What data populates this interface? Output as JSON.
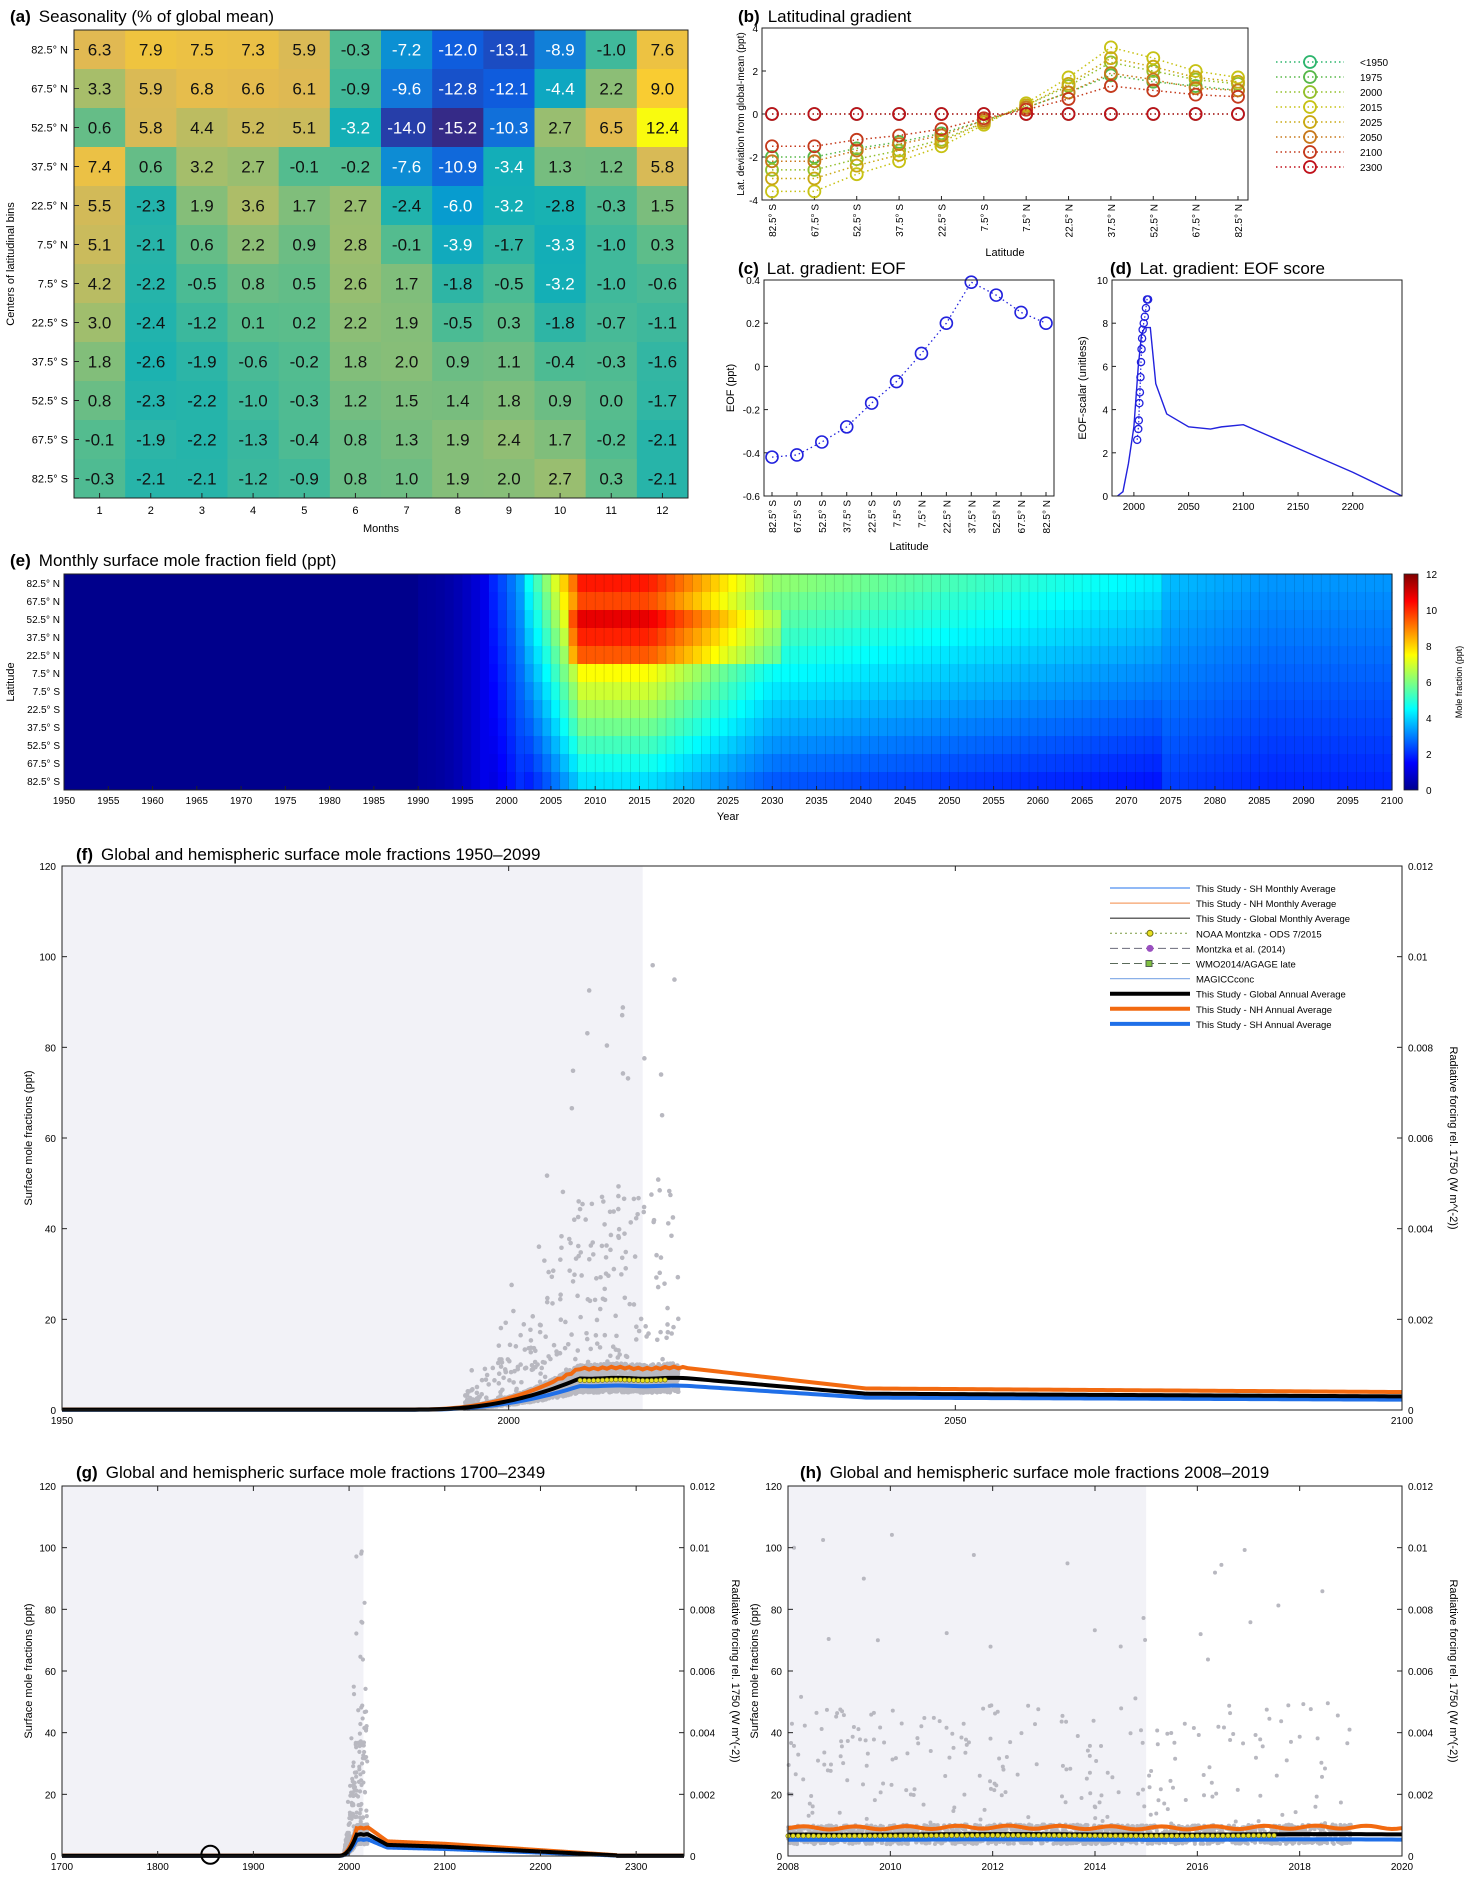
{
  "panels": {
    "a": {
      "letter": "(a)",
      "title": "Seasonality (% of global mean)"
    },
    "b": {
      "letter": "(b)",
      "title": "Latitudinal gradient"
    },
    "c": {
      "letter": "(c)",
      "title": "Lat. gradient: EOF"
    },
    "d": {
      "letter": "(d)",
      "title": "Lat. gradient: EOF score"
    },
    "e": {
      "letter": "(e)",
      "title": "Monthly surface mole fraction field (ppt)"
    },
    "f": {
      "letter": "(f)",
      "title": "Global and hemispheric surface mole fractions 1950–2099"
    },
    "g": {
      "letter": "(g)",
      "title": "Global and hemispheric surface mole fractions 1700–2349"
    },
    "h": {
      "letter": "(h)",
      "title": "Global and hemispheric surface mole fractions 2008–2019"
    }
  },
  "colors": {
    "nh": "#f26a10",
    "sh": "#1f6fe8",
    "global": "#000000",
    "sh_monthly": "#4f8ff0",
    "nh_monthly": "#f5a06a",
    "obs": "#b8b8c0",
    "shade": "#f2f2f7",
    "eof": "#2222dd"
  },
  "chart_data": [
    {
      "id": "a",
      "type": "heatmap",
      "title": "Seasonality (% of global mean)",
      "xlabel": "Months",
      "ylabel": "Centers of latitudinal bins",
      "x": [
        "1",
        "2",
        "3",
        "4",
        "5",
        "6",
        "7",
        "8",
        "9",
        "10",
        "11",
        "12"
      ],
      "y": [
        "82.5° N",
        "67.5° N",
        "52.5° N",
        "37.5° N",
        "22.5° N",
        "7.5° N",
        "7.5° S",
        "22.5° S",
        "37.5° S",
        "52.5° S",
        "67.5° S",
        "82.5° S"
      ],
      "z": [
        [
          "6.3",
          "7.9",
          "7.5",
          "7.3",
          "5.9",
          "-0.3",
          "-7.2",
          "-12.0",
          "-13.1",
          "-8.9",
          "-1.0",
          "7.6"
        ],
        [
          "3.3",
          "5.9",
          "6.8",
          "6.6",
          "6.1",
          "-0.9",
          "-9.6",
          "-12.8",
          "-12.1",
          "-4.4",
          "2.2",
          "9.0"
        ],
        [
          "0.6",
          "5.8",
          "4.4",
          "5.2",
          "5.1",
          "-3.2",
          "-14.0",
          "-15.2",
          "-10.3",
          "2.7",
          "6.5",
          "12.4"
        ],
        [
          "7.4",
          "0.6",
          "3.2",
          "2.7",
          "-0.1",
          "-0.2",
          "-7.6",
          "-10.9",
          "-3.4",
          "1.3",
          "1.2",
          "5.8"
        ],
        [
          "5.5",
          "-2.3",
          "1.9",
          "3.6",
          "1.7",
          "2.7",
          "-2.4",
          "-6.0",
          "-3.2",
          "-2.8",
          "-0.3",
          "1.5"
        ],
        [
          "5.1",
          "-2.1",
          "0.6",
          "2.2",
          "0.9",
          "2.8",
          "-0.1",
          "-3.9",
          "-1.7",
          "-3.3",
          "-1.0",
          "0.3"
        ],
        [
          "4.2",
          "-2.2",
          "-0.5",
          "0.8",
          "0.5",
          "2.6",
          "1.7",
          "-1.8",
          "-0.5",
          "-3.2",
          "-1.0",
          "-0.6"
        ],
        [
          "3.0",
          "-2.4",
          "-1.2",
          "0.1",
          "0.2",
          "2.2",
          "1.9",
          "-0.5",
          "0.3",
          "-1.8",
          "-0.7",
          "-1.1"
        ],
        [
          "1.8",
          "-2.6",
          "-1.9",
          "-0.6",
          "-0.2",
          "1.8",
          "2.0",
          "0.9",
          "1.1",
          "-0.4",
          "-0.3",
          "-1.6"
        ],
        [
          "0.8",
          "-2.3",
          "-2.2",
          "-1.0",
          "-0.3",
          "1.2",
          "1.5",
          "1.4",
          "1.8",
          "0.9",
          "0.0",
          "-1.7"
        ],
        [
          "-0.1",
          "-1.9",
          "-2.2",
          "-1.3",
          "-0.4",
          "0.8",
          "1.3",
          "1.9",
          "2.4",
          "1.7",
          "-0.2",
          "-2.1"
        ],
        [
          "-0.3",
          "-2.1",
          "-2.1",
          "-1.2",
          "-0.9",
          "0.8",
          "1.0",
          "1.9",
          "2.0",
          "2.7",
          "0.3",
          "-2.1"
        ]
      ]
    },
    {
      "id": "b",
      "type": "line",
      "title": "Latitudinal gradient",
      "xlabel": "Latitude",
      "ylabel": "Lat. deviation from global-mean (ppt)",
      "ylim": [
        -4,
        4
      ],
      "yticks": [
        "4",
        "2",
        "0",
        "-2",
        "-4"
      ],
      "categories": [
        "82.5° S",
        "67.5° S",
        "52.5° S",
        "37.5° S",
        "22.5° S",
        "7.5° S",
        "7.5° N",
        "22.5° N",
        "37.5° N",
        "52.5° N",
        "67.5° N",
        "82.5° N"
      ],
      "cat_lat": [
        -82.5,
        -67.5,
        -52.5,
        -37.5,
        -22.5,
        -7.5,
        7.5,
        22.5,
        37.5,
        52.5,
        67.5,
        82.5
      ],
      "series": [
        {
          "name": "<1950",
          "color": "#2db56d",
          "values": [
            0,
            0,
            0,
            0,
            0,
            0,
            0,
            0,
            0,
            0,
            0,
            0
          ]
        },
        {
          "name": "1975",
          "color": "#58b849",
          "values": [
            -2.0,
            -2.0,
            -1.6,
            -1.3,
            -0.9,
            -0.3,
            0.3,
            1.0,
            1.8,
            1.5,
            1.3,
            1.1
          ]
        },
        {
          "name": "2000",
          "color": "#93bf2a",
          "values": [
            -2.6,
            -2.6,
            -2.1,
            -1.7,
            -1.2,
            -0.4,
            0.4,
            1.3,
            2.4,
            2.0,
            1.6,
            1.4
          ]
        },
        {
          "name": "2015",
          "color": "#c7c214",
          "values": [
            -3.6,
            -3.6,
            -2.8,
            -2.2,
            -1.5,
            -0.5,
            0.5,
            1.7,
            3.1,
            2.6,
            2.0,
            1.7
          ]
        },
        {
          "name": "2025",
          "color": "#c9a812",
          "values": [
            -3.0,
            -3.0,
            -2.4,
            -1.9,
            -1.3,
            -0.4,
            0.4,
            1.4,
            2.6,
            2.2,
            1.7,
            1.5
          ]
        },
        {
          "name": "2050",
          "color": "#c8781a",
          "values": [
            -2.2,
            -2.2,
            -1.7,
            -1.4,
            -1.0,
            -0.3,
            0.3,
            1.0,
            1.9,
            1.6,
            1.2,
            1.1
          ]
        },
        {
          "name": "2100",
          "color": "#c43a1c",
          "values": [
            -1.5,
            -1.5,
            -1.2,
            -1.0,
            -0.7,
            -0.2,
            0.2,
            0.7,
            1.3,
            1.1,
            0.9,
            0.8
          ]
        },
        {
          "name": "2300",
          "color": "#c0101a",
          "values": [
            0,
            0,
            0,
            0,
            0,
            0,
            0,
            0,
            0,
            0,
            0,
            0
          ]
        }
      ]
    },
    {
      "id": "c",
      "type": "line",
      "title": "Lat. gradient: EOF",
      "xlabel": "Latitude",
      "ylabel": "EOF (ppt)",
      "ylim": [
        -0.6,
        0.4
      ],
      "yticks": [
        "0.4",
        "0.2",
        "0",
        "-0.2",
        "-0.4",
        "-0.6"
      ],
      "x": [
        -82.5,
        -67.5,
        -52.5,
        -37.5,
        -22.5,
        -7.5,
        7.5,
        22.5,
        37.5,
        52.5,
        67.5,
        82.5
      ],
      "values": [
        -0.42,
        -0.41,
        -0.35,
        -0.28,
        -0.17,
        -0.07,
        0.06,
        0.2,
        0.39,
        0.33,
        0.25,
        0.2
      ]
    },
    {
      "id": "d",
      "type": "line",
      "title": "Lat. gradient: EOF score",
      "xlabel": "",
      "ylabel": "EOF-scalar (unitless)",
      "xlim": [
        1980,
        2245
      ],
      "ylim": [
        0,
        10
      ],
      "xticks": [
        2000,
        2050,
        2100,
        2150,
        2200
      ],
      "yticks": [
        0,
        2,
        4,
        6,
        8,
        10
      ],
      "x": [
        1985,
        1990,
        1995,
        2000,
        2004,
        2007,
        2010,
        2015,
        2020,
        2030,
        2050,
        2070,
        2080,
        2100,
        2150,
        2200,
        2245
      ],
      "values": [
        0,
        0.2,
        1.5,
        3.2,
        6,
        7.5,
        7.8,
        7.8,
        5.2,
        3.8,
        3.2,
        3.1,
        3.2,
        3.3,
        2.2,
        1.1,
        0
      ],
      "markers_x": [
        2003,
        2004,
        2004.5,
        2005,
        2005.5,
        2006,
        2006.5,
        2007,
        2007.5,
        2008,
        2009,
        2010,
        2011,
        2012,
        2013
      ],
      "markers_y": [
        2.6,
        3.1,
        3.5,
        4.3,
        4.8,
        5.5,
        6.2,
        6.8,
        7.3,
        7.7,
        8.0,
        8.3,
        8.7,
        9.1,
        9.1
      ]
    },
    {
      "id": "e",
      "type": "heatmap",
      "title": "Monthly surface mole fraction field (ppt)",
      "xlabel": "Year",
      "ylabel": "Latitude",
      "colorbar_label": "Mole fraction (ppt)",
      "xlim": [
        1950,
        2100
      ],
      "xticks": [
        1950,
        1955,
        1960,
        1965,
        1970,
        1975,
        1980,
        1985,
        1990,
        1995,
        2000,
        2005,
        2010,
        2015,
        2020,
        2025,
        2030,
        2035,
        2040,
        2045,
        2050,
        2055,
        2060,
        2065,
        2070,
        2075,
        2080,
        2085,
        2090,
        2095,
        2100
      ],
      "y": [
        "82.5° N",
        "67.5° N",
        "52.5° N",
        "37.5° N",
        "22.5° N",
        "7.5° N",
        "7.5° S",
        "22.5° S",
        "37.5° S",
        "52.5° S",
        "67.5° S",
        "82.5° S"
      ],
      "zlim": [
        0,
        12
      ],
      "zticks": [
        0,
        2,
        4,
        6,
        8,
        10,
        12
      ]
    },
    {
      "id": "f",
      "type": "line",
      "title": "Global and hemispheric surface mole fractions 1950–2099",
      "ylabel": "Surface mole fractions (ppt)",
      "y2label": "Radiative forcing rel. 1750 (W m^(-2))",
      "xlim": [
        1950,
        2100
      ],
      "ylim": [
        0,
        120
      ],
      "xticks": [
        1950,
        2000,
        2050,
        2100
      ],
      "yticks": [
        0,
        20,
        40,
        60,
        80,
        100,
        120
      ],
      "y2ticks": [
        "0",
        "0.002",
        "0.004",
        "0.006",
        "0.008",
        "0.01",
        "0.012"
      ],
      "legend": [
        "This Study - SH Monthly Average",
        "This Study - NH Monthly Average",
        "This Study - Global Monthly Average",
        "NOAA Montzka - ODS 7/2015",
        "Montzka et al. (2014)",
        "WMO2014/AGAGE late",
        "MAGICCconc",
        "This Study - Global Annual Average",
        "This Study - NH Annual Average",
        "This Study - SH Annual Average"
      ],
      "legend_position": "top-right",
      "shade_until": 2015
    },
    {
      "id": "g",
      "type": "line",
      "title": "Global and hemispheric surface mole fractions 1700–2349",
      "ylabel": "Surface mole fractions (ppt)",
      "y2label": "Radiative forcing rel. 1750 (W m^(-2))",
      "xlim": [
        1700,
        2350
      ],
      "ylim": [
        0,
        120
      ],
      "xticks": [
        1700,
        1800,
        1900,
        2000,
        2100,
        2200,
        2300
      ],
      "yticks": [
        0,
        20,
        40,
        60,
        80,
        100,
        120
      ],
      "y2ticks": [
        "0",
        "0.002",
        "0.004",
        "0.006",
        "0.008",
        "0.01",
        "0.012"
      ],
      "shade_until": 2015
    },
    {
      "id": "h",
      "type": "line",
      "title": "Global and hemispheric surface mole fractions 2008–2019",
      "ylabel": "Surface mole fractions (ppt)",
      "y2label": "Radiative forcing rel. 1750 (W m^(-2))",
      "xlim": [
        2008,
        2020
      ],
      "ylim": [
        0,
        120
      ],
      "xticks": [
        2008,
        2010,
        2012,
        2014,
        2016,
        2018,
        2020
      ],
      "yticks": [
        0,
        20,
        40,
        60,
        80,
        100,
        120
      ],
      "y2ticks": [
        "0",
        "0.002",
        "0.004",
        "0.006",
        "0.008",
        "0.01",
        "0.012"
      ],
      "shade_until": 2015
    }
  ]
}
